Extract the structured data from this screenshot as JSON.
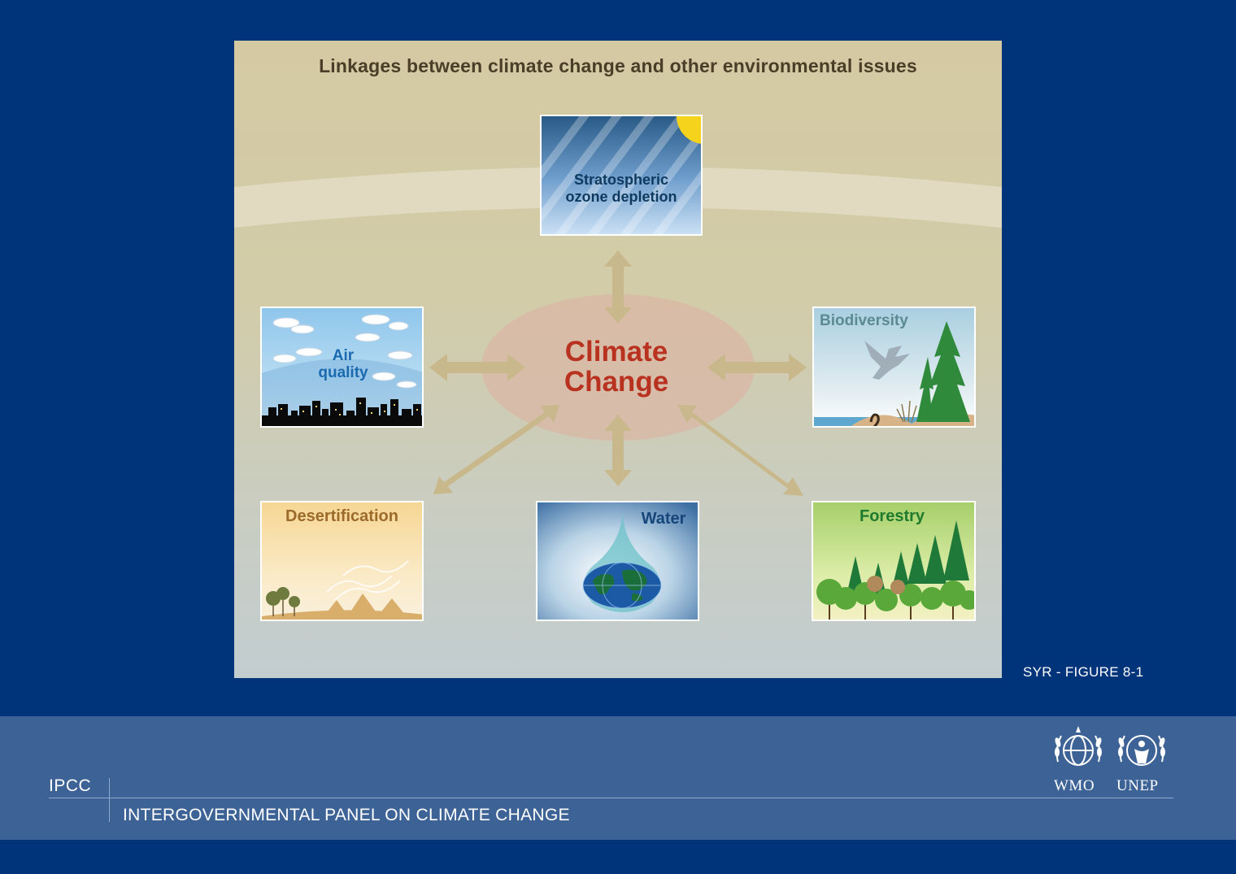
{
  "figure": {
    "title": "Linkages between climate change and other environmental issues",
    "center_label_line1": "Climate",
    "center_label_line2": "Change",
    "panels": {
      "ozone": {
        "line1": "Stratospheric",
        "line2": "ozone depletion"
      },
      "air": {
        "line1": "Air",
        "line2": "quality"
      },
      "biodiversity": {
        "label": "Biodiversity"
      },
      "desertification": {
        "label": "Desertification"
      },
      "water": {
        "label": "Water"
      },
      "forestry": {
        "label": "Forestry"
      }
    },
    "caption": "SYR - FIGURE 8-1"
  },
  "footer": {
    "abbr": "IPCC",
    "full_name": "INTERGOVERNMENTAL PANEL ON CLIMATE CHANGE",
    "logos": [
      "WMO",
      "UNEP"
    ]
  },
  "colors": {
    "background": "#00347a",
    "footer": "#3c6296",
    "center_text": "#b8321f",
    "arrow": "#c8b88c"
  }
}
